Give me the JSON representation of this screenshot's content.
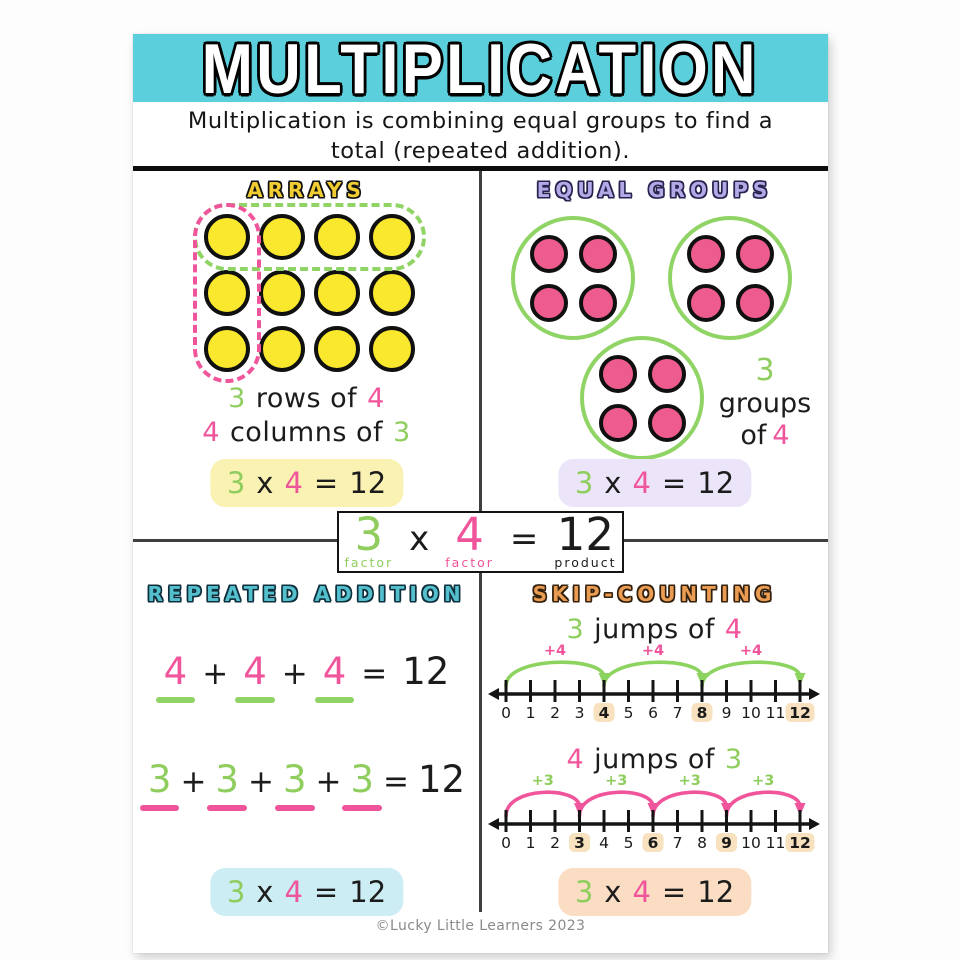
{
  "title": "MULTIPLICATION",
  "subtitle_line1": "Multiplication is combining equal groups to find a",
  "subtitle_line2": "total (repeated addition).",
  "footer": "©Lucky Little Learners 2023",
  "colors": {
    "banner": "#5BD0DC",
    "green": "#8FCE5E",
    "pink": "#F0559B",
    "yellow_dot": "#F9E82D",
    "pink_dot": "#EE5B8F",
    "pill_yellow": "#FAF2B3",
    "pill_lavender": "#ECE5FA",
    "pill_cyan": "#CBEDF3",
    "pill_peach": "#FADDC3",
    "numberline_highlight": "#F8E1BE"
  },
  "equation": {
    "factor1": "3",
    "times": "x",
    "factor2": "4",
    "equals": "=",
    "product": "12"
  },
  "equation_labels": {
    "factor1": "factor",
    "factor2": "factor",
    "product": "product"
  },
  "arrays": {
    "heading": "ARRAYS",
    "rows": 3,
    "cols": 4,
    "row_caption": {
      "n1": "3",
      "mid": "rows of",
      "n2": "4"
    },
    "col_caption": {
      "n1": "4",
      "mid": "columns of",
      "n2": "3"
    }
  },
  "equal_groups": {
    "heading": "EQUAL GROUPS",
    "groups": 3,
    "dots_per_group": 4,
    "caption": {
      "n1": "3",
      "line2": "groups",
      "of": "of",
      "n2": "4"
    }
  },
  "repeated_addition": {
    "heading": "REPEATED ADDITION",
    "eq1": {
      "terms": [
        "4",
        "4",
        "4"
      ],
      "plus": "+",
      "equals": "=",
      "total": "12"
    },
    "eq2": {
      "terms": [
        "3",
        "3",
        "3",
        "3"
      ],
      "plus": "+",
      "equals": "=",
      "total": "12"
    }
  },
  "skip_counting": {
    "heading": "SKIP-COUNTING",
    "line1": {
      "caption": {
        "n1": "3",
        "mid": "jumps of",
        "n2": "4"
      },
      "min": 0,
      "max": 12,
      "highlights": [
        4,
        8,
        12
      ],
      "jumps": [
        {
          "from": 0,
          "to": 4,
          "label": "+4"
        },
        {
          "from": 4,
          "to": 8,
          "label": "+4"
        },
        {
          "from": 8,
          "to": 12,
          "label": "+4"
        }
      ],
      "arc_color": "#8CD45F",
      "label_color": "#F0559B"
    },
    "line2": {
      "caption": {
        "n1": "4",
        "mid": "jumps of",
        "n2": "3"
      },
      "min": 0,
      "max": 12,
      "highlights": [
        3,
        6,
        9,
        12
      ],
      "jumps": [
        {
          "from": 0,
          "to": 3,
          "label": "+3"
        },
        {
          "from": 3,
          "to": 6,
          "label": "+3"
        },
        {
          "from": 6,
          "to": 9,
          "label": "+3"
        },
        {
          "from": 9,
          "to": 12,
          "label": "+3"
        }
      ],
      "arc_color": "#F0559B",
      "label_color": "#8FCE5E"
    }
  }
}
